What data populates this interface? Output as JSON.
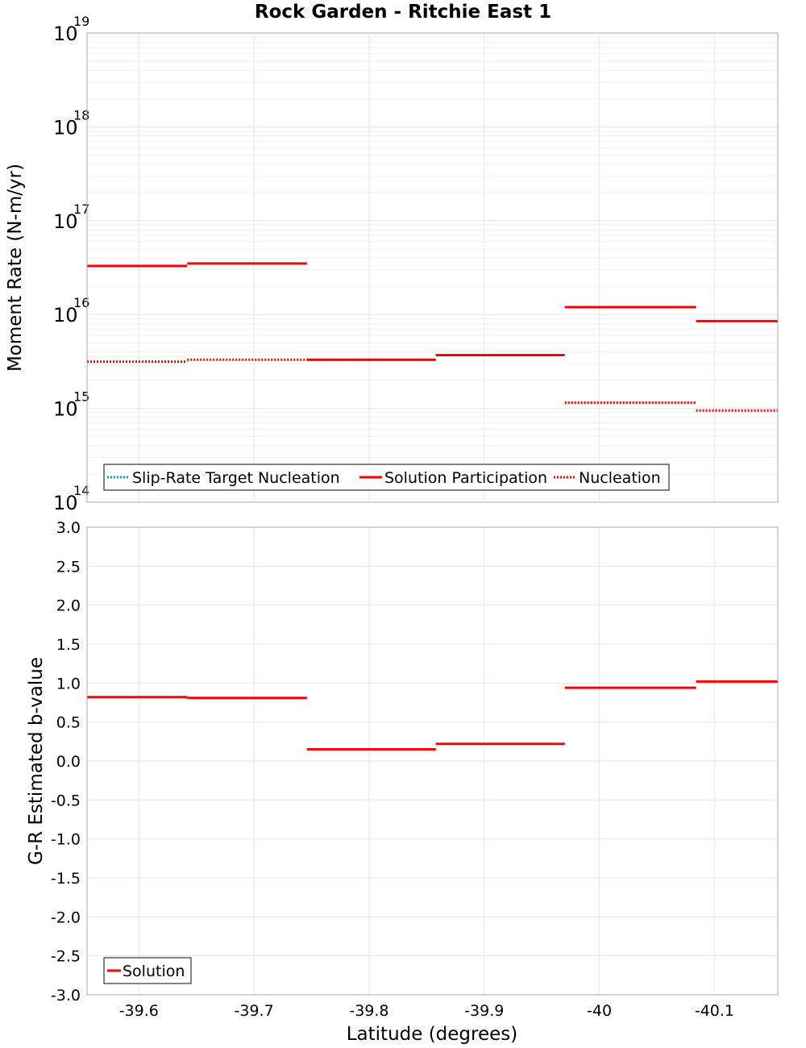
{
  "title": "Rock Garden - Ritchie East 1",
  "chart_data": [
    {
      "type": "line",
      "scale": "log",
      "ylabel": "Moment Rate (N-m/yr)",
      "xlabel": "",
      "xlim": [
        -39.555,
        -40.155
      ],
      "ylim_exp": [
        14,
        19
      ],
      "ytick_base": "10",
      "ytick_exponents": [
        "14",
        "15",
        "16",
        "17",
        "18",
        "19"
      ],
      "grid": true,
      "legend_position": "bottom-left",
      "legend": [
        {
          "label": "Slip-Rate Target Nucleation",
          "color": "#00a0b0",
          "style": "dotted"
        },
        {
          "label": "Solution Participation",
          "color": "#ff0000",
          "style": "solid"
        },
        {
          "label": "Nucleation",
          "color": "#ff0000",
          "style": "dotted"
        }
      ],
      "series": [
        {
          "name": "Solution Participation",
          "color": "#ff0000",
          "style": "solid",
          "segments": [
            {
              "x0": -39.555,
              "x1": -39.642,
              "y": 3.3e+16
            },
            {
              "x0": -39.642,
              "x1": -39.746,
              "y": 3.5e+16
            },
            {
              "x0": -39.746,
              "x1": -39.858,
              "y": 3300000000000000.0
            },
            {
              "x0": -39.858,
              "x1": -39.97,
              "y": 3700000000000000.0
            },
            {
              "x0": -39.97,
              "x1": -40.084,
              "y": 1.2e+16
            },
            {
              "x0": -40.084,
              "x1": -40.155,
              "y": 8500000000000000.0
            }
          ]
        },
        {
          "name": "Nucleation",
          "color": "#ff0000",
          "style": "dotted",
          "segments": [
            {
              "x0": -39.555,
              "x1": -39.642,
              "y": 3150000000000000.0
            },
            {
              "x0": -39.642,
              "x1": -39.746,
              "y": 3300000000000000.0
            },
            {
              "x0": -39.746,
              "x1": -39.858,
              "y": 3300000000000000.0
            },
            {
              "x0": -39.858,
              "x1": -39.97,
              "y": 3700000000000000.0
            },
            {
              "x0": -39.97,
              "x1": -40.084,
              "y": 1150000000000000.0
            },
            {
              "x0": -40.084,
              "x1": -40.155,
              "y": 950000000000000.0
            }
          ]
        }
      ]
    },
    {
      "type": "line",
      "ylabel": "G-R Estimated b-value",
      "xlabel": "Latitude (degrees)",
      "xlim": [
        -39.555,
        -40.155
      ],
      "ylim": [
        -3.0,
        3.0
      ],
      "xticks": [
        -39.6,
        -39.7,
        -39.8,
        -39.9,
        -40.0,
        -40.1
      ],
      "xtick_labels": [
        "-39.6",
        "-39.7",
        "-39.8",
        "-39.9",
        "-40",
        "-40.1"
      ],
      "yticks": [
        3.0,
        2.5,
        2.0,
        1.5,
        1.0,
        0.5,
        0.0,
        -0.5,
        -1.0,
        -1.5,
        -2.0,
        -2.5,
        -3.0
      ],
      "ytick_labels": [
        "3.0",
        "2.5",
        "2.0",
        "1.5",
        "1.0",
        "0.5",
        "0.0",
        "-0.5",
        "-1.0",
        "-1.5",
        "-2.0",
        "-2.5",
        "-3.0"
      ],
      "grid": true,
      "legend_position": "bottom-left",
      "legend": [
        {
          "label": "Solution",
          "color": "#ff0000",
          "style": "solid"
        }
      ],
      "series": [
        {
          "name": "Solution",
          "color": "#ff0000",
          "style": "solid",
          "segments": [
            {
              "x0": -39.555,
              "x1": -39.642,
              "y": 0.82
            },
            {
              "x0": -39.642,
              "x1": -39.746,
              "y": 0.81
            },
            {
              "x0": -39.746,
              "x1": -39.858,
              "y": 0.15
            },
            {
              "x0": -39.858,
              "x1": -39.97,
              "y": 0.22
            },
            {
              "x0": -39.97,
              "x1": -40.084,
              "y": 0.94
            },
            {
              "x0": -40.084,
              "x1": -40.155,
              "y": 1.02
            }
          ]
        }
      ]
    }
  ]
}
